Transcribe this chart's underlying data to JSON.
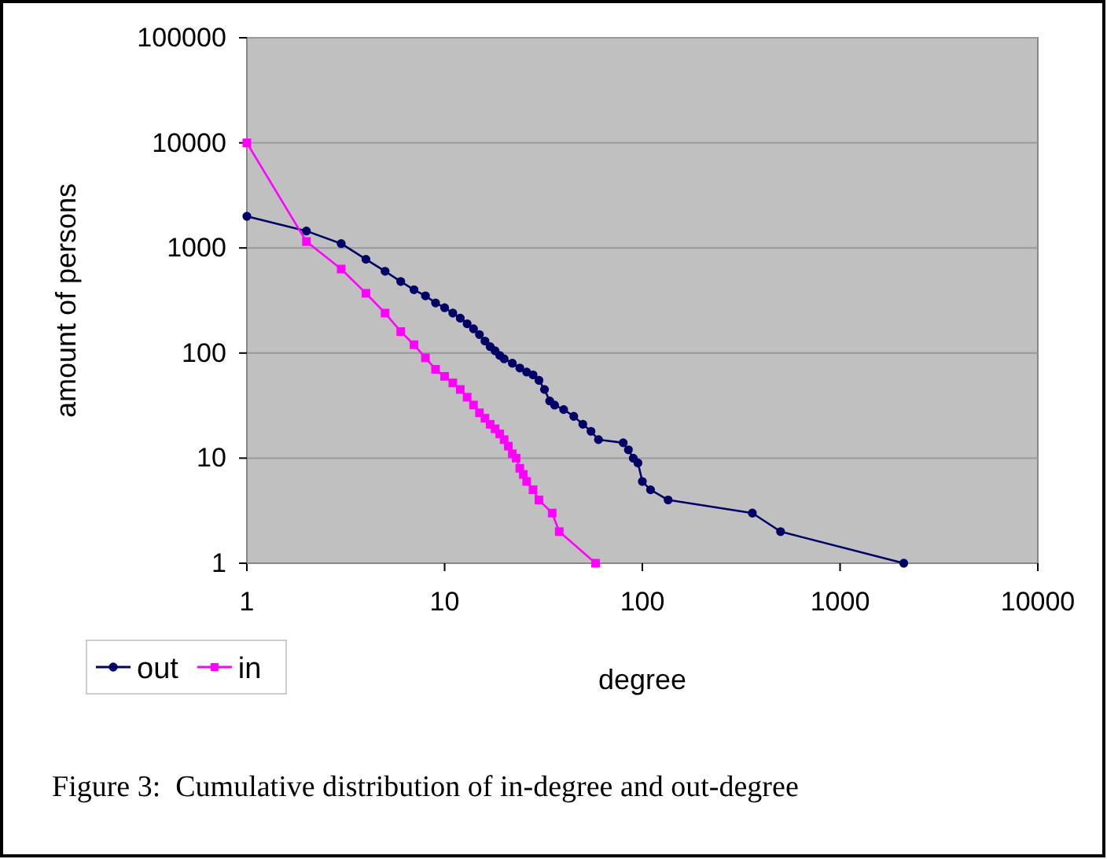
{
  "chart_data": {
    "type": "line",
    "xlabel": "degree",
    "ylabel": "amount of persons",
    "log": "xy",
    "grid": "y",
    "legend": "bottom left",
    "xlim": [
      1,
      10000
    ],
    "xticks": [
      1,
      10,
      100,
      1000,
      10000
    ],
    "ylim": [
      1,
      100000
    ],
    "yticks": [
      1,
      10,
      100,
      1000,
      10000,
      100000
    ],
    "annotations": [
      "Figure 3:  Cumulative distribution of in-degree and out-degree"
    ],
    "series": [
      {
        "name": "out",
        "color": "#000066",
        "marker": "circle",
        "x": [
          1,
          2,
          3,
          4,
          5,
          6,
          7,
          8,
          9,
          10,
          11,
          12,
          13,
          14,
          15,
          16,
          17,
          18,
          19,
          20,
          22,
          24,
          26,
          28,
          30,
          32,
          34,
          36,
          40,
          45,
          50,
          55,
          60,
          80,
          85,
          90,
          95,
          100,
          110,
          135,
          360,
          500,
          2100
        ],
        "values": [
          2000,
          1450,
          1100,
          780,
          600,
          480,
          400,
          350,
          300,
          270,
          240,
          215,
          190,
          170,
          150,
          130,
          115,
          105,
          95,
          88,
          80,
          72,
          66,
          62,
          55,
          45,
          35,
          32,
          29,
          25,
          21,
          18,
          15,
          14,
          12,
          10,
          9,
          6,
          5,
          4,
          3,
          2,
          1
        ]
      },
      {
        "name": "in",
        "color": "#ff00ff",
        "marker": "square",
        "x": [
          1,
          2,
          3,
          4,
          5,
          6,
          7,
          8,
          9,
          10,
          11,
          12,
          13,
          14,
          15,
          16,
          17,
          18,
          19,
          20,
          21,
          22,
          23,
          24,
          25,
          26,
          28,
          30,
          35,
          38,
          58
        ],
        "values": [
          10000,
          1150,
          630,
          370,
          240,
          160,
          120,
          90,
          70,
          60,
          52,
          45,
          38,
          32,
          27,
          24,
          21,
          19,
          17,
          15,
          13,
          11,
          10,
          8,
          7,
          6,
          5,
          4,
          3,
          2,
          1
        ]
      }
    ]
  }
}
